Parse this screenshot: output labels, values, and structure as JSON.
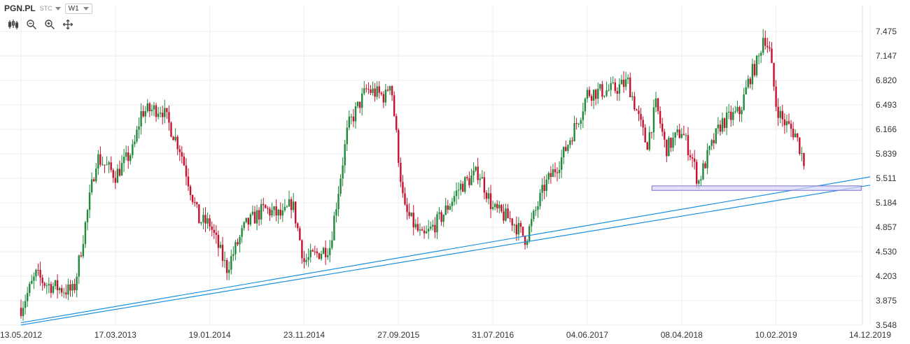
{
  "header": {
    "symbol": "PGN.PL",
    "type_label": "STC",
    "interval": "W1"
  },
  "toolbar": {
    "tools": [
      "candles-icon",
      "zoom-out-icon",
      "zoom-in-icon",
      "move-icon"
    ]
  },
  "colors": {
    "up": "#1e8a3a",
    "down": "#c8102e",
    "trendline": "#1a8fe0",
    "zone_fill": "#d9d6f5",
    "zone_stroke": "#7b6fd6",
    "grid": "#eeeeee",
    "axis_text": "#333333"
  },
  "chart_data": {
    "type": "candlestick",
    "title": "",
    "x_ticks": [
      "13.05.2012",
      "17.03.2013",
      "19.01.2014",
      "23.11.2014",
      "27.09.2015",
      "31.07.2016",
      "04.06.2017",
      "08.04.2018",
      "10.02.2019",
      "14.12.2019"
    ],
    "y_ticks": [
      "7.475",
      "7.147",
      "6.820",
      "6.493",
      "6.166",
      "5.839",
      "5.511",
      "5.184",
      "4.857",
      "4.530",
      "4.203",
      "3.875",
      "3.548"
    ],
    "ylim": [
      3.548,
      7.475
    ],
    "xlim": [
      "13.05.2012",
      "14.12.2019"
    ],
    "grid": true,
    "close_path": [
      [
        "13.05.2012",
        3.78
      ],
      [
        "01.07.2012",
        4.22
      ],
      [
        "01.08.2012",
        4.1
      ],
      [
        "01.10.2012",
        4.02
      ],
      [
        "01.11.2012",
        4.0
      ],
      [
        "01.12.2012",
        4.7
      ],
      [
        "15.01.2013",
        5.8
      ],
      [
        "17.03.2013",
        5.55
      ],
      [
        "15.05.2013",
        5.9
      ],
      [
        "10.06.2013",
        6.4
      ],
      [
        "15.08.2013",
        6.45
      ],
      [
        "15.10.2013",
        5.9
      ],
      [
        "15.11.2013",
        5.4
      ],
      [
        "15.12.2013",
        4.95
      ],
      [
        "19.01.2014",
        4.9
      ],
      [
        "15.03.2014",
        4.3
      ],
      [
        "15.05.2014",
        4.88
      ],
      [
        "15.07.2014",
        5.1
      ],
      [
        "15.09.2014",
        5.0
      ],
      [
        "15.10.2014",
        5.2
      ],
      [
        "23.11.2014",
        4.4
      ],
      [
        "15.02.2015",
        4.6
      ],
      [
        "15.04.2015",
        6.2
      ],
      [
        "15.06.2015",
        6.7
      ],
      [
        "15.08.2015",
        6.6
      ],
      [
        "01.09.2015",
        6.85
      ],
      [
        "27.09.2015",
        5.8
      ],
      [
        "15.10.2015",
        5.1
      ],
      [
        "15.12.2015",
        4.7
      ],
      [
        "15.02.2016",
        5.0
      ],
      [
        "15.04.2016",
        5.4
      ],
      [
        "15.06.2016",
        5.6
      ],
      [
        "31.07.2016",
        5.1
      ],
      [
        "01.10.2016",
        4.95
      ],
      [
        "15.11.2016",
        4.7
      ],
      [
        "15.01.2017",
        5.4
      ],
      [
        "15.03.2017",
        5.8
      ],
      [
        "15.05.2017",
        6.4
      ],
      [
        "04.06.2017",
        6.65
      ],
      [
        "01.09.2017",
        6.7
      ],
      [
        "15.10.2017",
        6.8
      ],
      [
        "15.12.2017",
        5.95
      ],
      [
        "15.01.2018",
        6.5
      ],
      [
        "15.02.2018",
        5.9
      ],
      [
        "08.04.2018",
        6.15
      ],
      [
        "15.05.2018",
        5.75
      ],
      [
        "01.06.2018",
        5.45
      ],
      [
        "01.07.2018",
        5.8
      ],
      [
        "15.08.2018",
        6.25
      ],
      [
        "15.10.2018",
        6.4
      ],
      [
        "15.11.2018",
        6.85
      ],
      [
        "15.12.2018",
        7.1
      ],
      [
        "01.01.2019",
        7.45
      ],
      [
        "20.01.2019",
        7.2
      ],
      [
        "10.02.2019",
        6.5
      ],
      [
        "01.03.2019",
        6.3
      ],
      [
        "15.04.2019",
        6.1
      ],
      [
        "15.05.2019",
        5.7
      ]
    ],
    "annotations": {
      "trendlines": [
        {
          "from": [
            "13.05.2012",
            3.58
          ],
          "to": [
            "14.12.2019",
            5.53
          ]
        },
        {
          "from": [
            "13.05.2012",
            3.55
          ],
          "to": [
            "14.12.2019",
            5.42
          ]
        }
      ],
      "support_zone": {
        "from": "01.01.2018",
        "to": "15.11.2019",
        "low": 5.35,
        "high": 5.41
      }
    }
  }
}
